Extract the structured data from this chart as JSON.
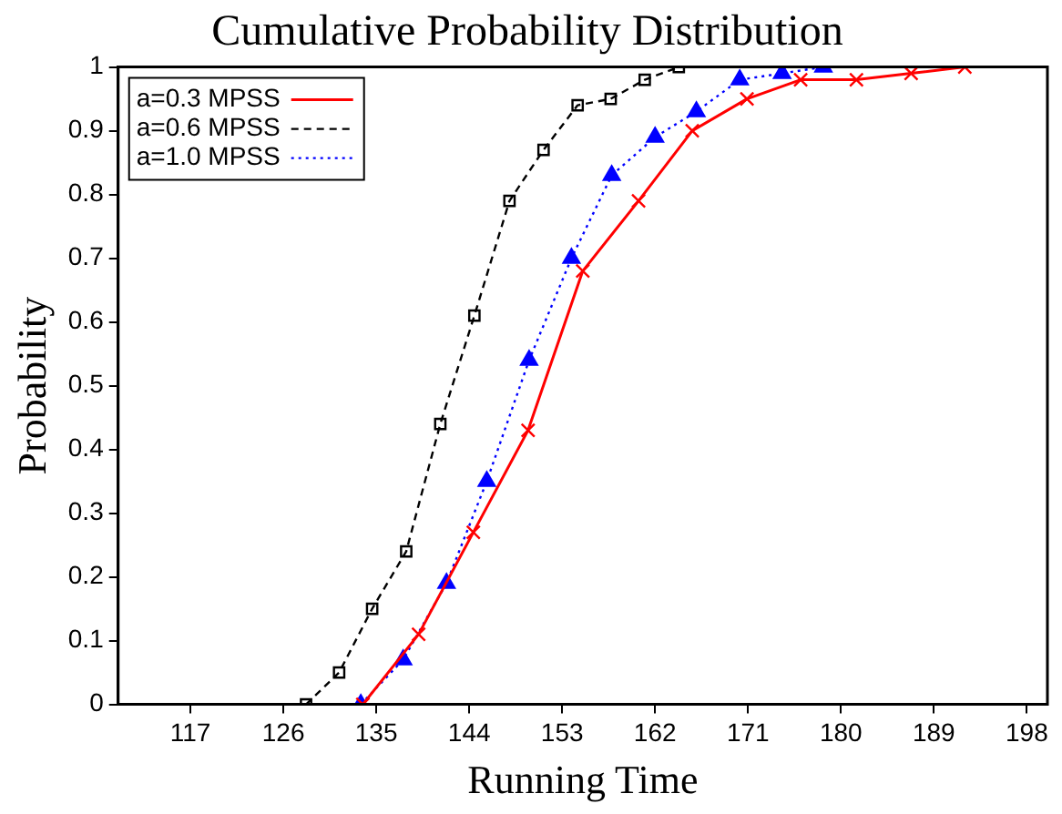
{
  "chart_data": {
    "type": "line",
    "title": "Cumulative Probability Distribution",
    "xlabel": "Running Time",
    "ylabel": "Probability",
    "xlim": [
      110,
      200
    ],
    "xticks": [
      117,
      126,
      135,
      144,
      153,
      162,
      171,
      180,
      189,
      198
    ],
    "ylim": [
      0,
      1
    ],
    "yticks": [
      0,
      0.1,
      0.2,
      0.3,
      0.4,
      0.5,
      0.6,
      0.7,
      0.8,
      0.9,
      1
    ],
    "grid": false,
    "legend": "top left",
    "series": [
      {
        "name": "a=0.3 MPSS",
        "color": "#ff0000",
        "marker": "cross",
        "line_style": "solid",
        "x": [
          133.7,
          139.1,
          144.4,
          149.7,
          155.0,
          160.4,
          165.6,
          170.9,
          176.1,
          181.5,
          186.8,
          192.0
        ],
        "values": [
          0,
          0.11,
          0.27,
          0.43,
          0.68,
          0.79,
          0.9,
          0.95,
          0.98,
          0.98,
          0.99,
          1.0
        ]
      },
      {
        "name": "a=0.6 MPSS",
        "color": "#000000",
        "marker": "square",
        "line_style": "dashed",
        "x": [
          128.2,
          131.4,
          134.6,
          137.9,
          141.2,
          144.5,
          147.9,
          151.2,
          154.5,
          157.7,
          161.0,
          164.3
        ],
        "values": [
          0,
          0.05,
          0.15,
          0.24,
          0.44,
          0.61,
          0.79,
          0.87,
          0.94,
          0.95,
          0.98,
          1.0
        ]
      },
      {
        "name": "a=1.0 MPSS",
        "color": "#0000ff",
        "marker": "triangle",
        "line_style": "dotted",
        "x": [
          133.5,
          137.6,
          141.8,
          145.7,
          149.8,
          153.9,
          157.8,
          162.0,
          166.0,
          170.2,
          174.3,
          178.3
        ],
        "values": [
          0,
          0.07,
          0.19,
          0.35,
          0.54,
          0.7,
          0.83,
          0.89,
          0.93,
          0.98,
          0.99,
          1.0
        ]
      }
    ]
  }
}
